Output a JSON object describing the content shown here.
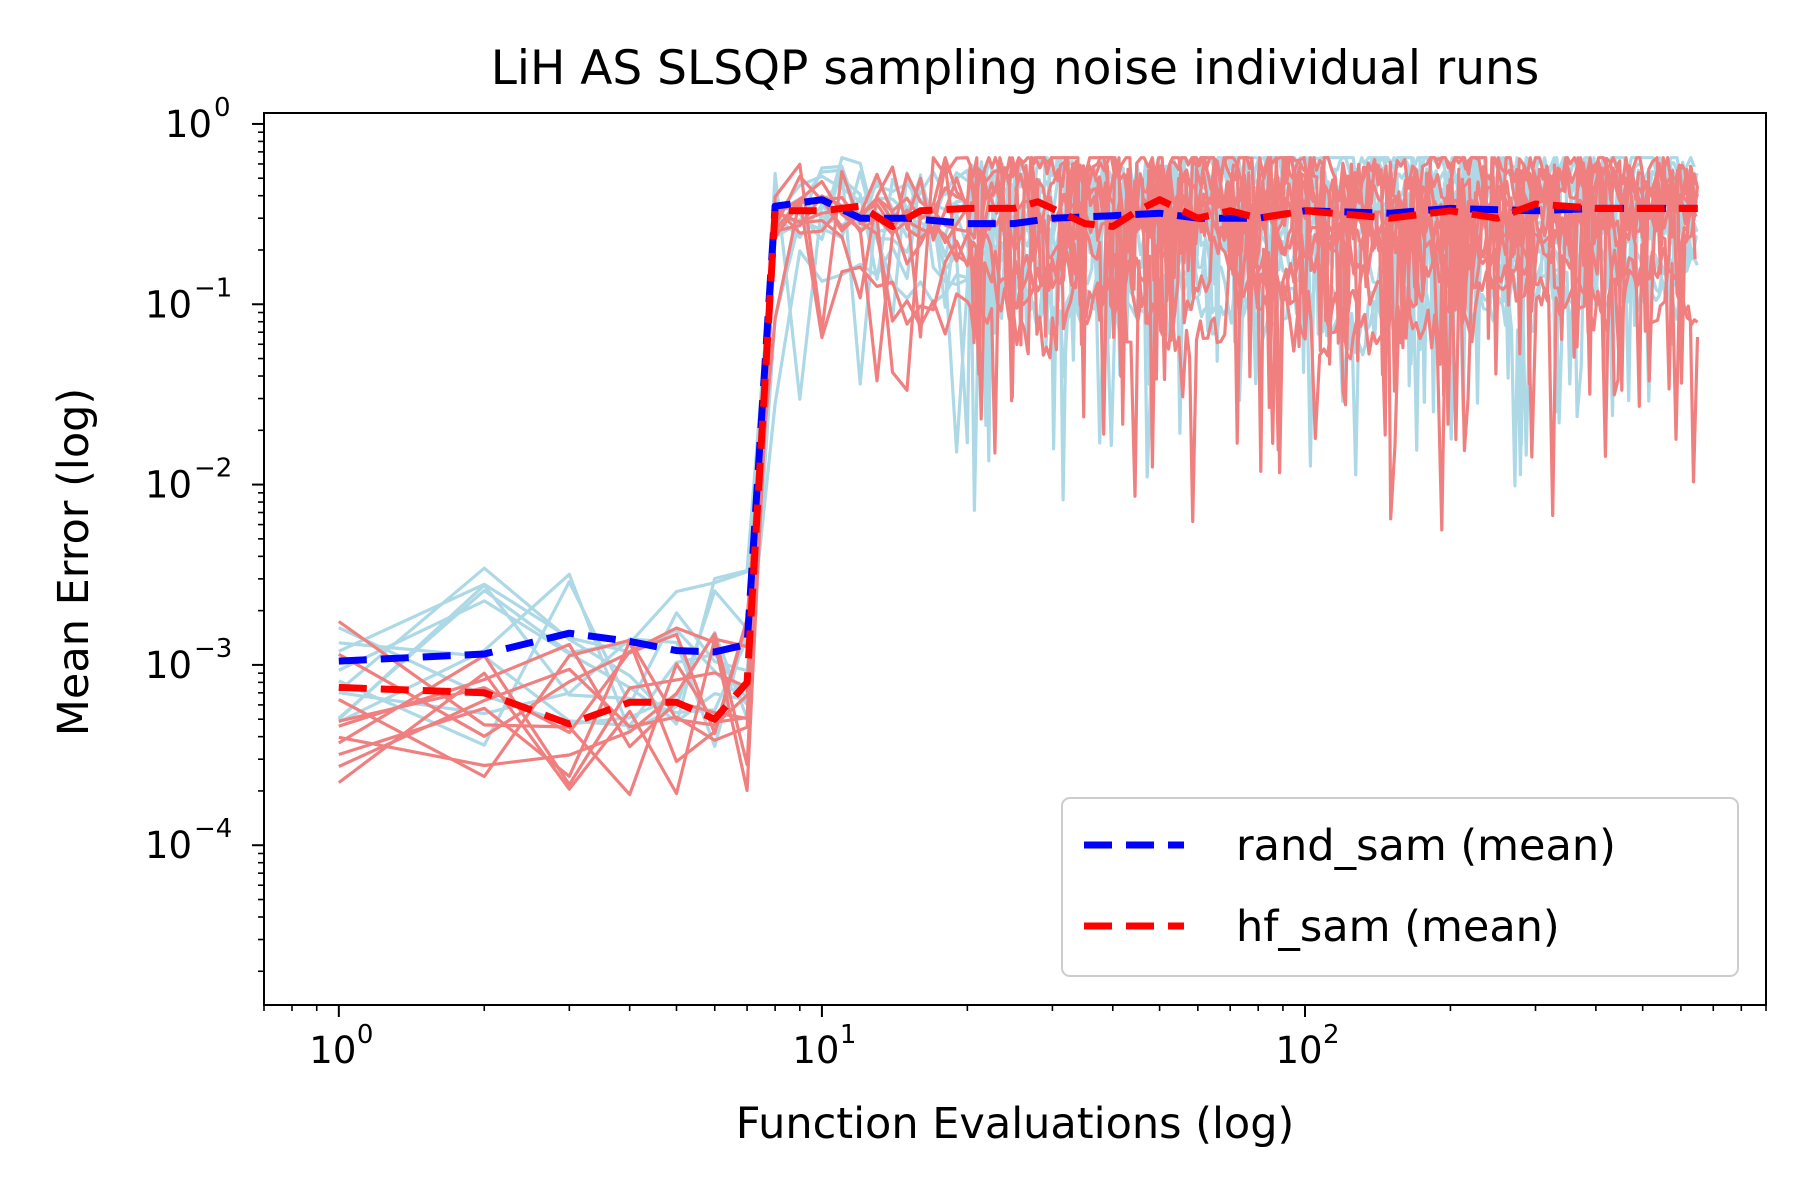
{
  "chart_data": {
    "type": "line",
    "title": "LiH AS SLSQP sampling noise individual runs",
    "xlabel": "Function Evaluations (log)",
    "ylabel": "Mean Error (log)",
    "xscale": "log",
    "yscale": "log",
    "xlim": [
      0.7,
      900
    ],
    "ylim": [
      1.3e-05,
      1.15
    ],
    "grid": false,
    "legend_placement": "lower-right",
    "x_ticks": [
      {
        "base": "10",
        "exp": "0",
        "value": 1
      },
      {
        "base": "10",
        "exp": "1",
        "value": 10
      },
      {
        "base": "10",
        "exp": "2",
        "value": 100
      }
    ],
    "y_ticks": [
      {
        "base": "10",
        "exp": "0",
        "value": 1
      },
      {
        "base": "10",
        "exp": "−1",
        "value": 0.1
      },
      {
        "base": "10",
        "exp": "−2",
        "value": 0.01
      },
      {
        "base": "10",
        "exp": "−3",
        "value": 0.001
      },
      {
        "base": "10",
        "exp": "−4",
        "value": 0.0001
      }
    ],
    "colors": {
      "rand_runs": "#add8e6",
      "hf_runs": "#f08080",
      "rand_mean": "#0000ff",
      "hf_mean": "#ff0000"
    },
    "series": [
      {
        "name": "rand_sam (mean)",
        "style": "dashed",
        "color": "#0000ff",
        "x": [
          1,
          2,
          3,
          4,
          5,
          6,
          7,
          8,
          10,
          12,
          15,
          20,
          25,
          30,
          40,
          50,
          60,
          80,
          100,
          150,
          200,
          300,
          400,
          650
        ],
        "y": [
          0.00105,
          0.00115,
          0.0015,
          0.00135,
          0.0012,
          0.00118,
          0.0013,
          0.35,
          0.38,
          0.3,
          0.3,
          0.28,
          0.28,
          0.3,
          0.31,
          0.32,
          0.3,
          0.3,
          0.33,
          0.32,
          0.34,
          0.33,
          0.34,
          0.34
        ]
      },
      {
        "name": "hf_sam (mean)",
        "style": "dashed",
        "color": "#ff0000",
        "x": [
          1,
          2,
          3,
          4,
          5,
          6,
          7,
          8,
          10,
          12,
          14,
          16,
          20,
          25,
          28,
          35,
          40,
          45,
          50,
          60,
          70,
          80,
          100,
          150,
          200,
          250,
          300,
          400,
          650
        ],
        "y": [
          0.00075,
          0.0007,
          0.00047,
          0.00062,
          0.00062,
          0.0005,
          0.0008,
          0.33,
          0.33,
          0.35,
          0.27,
          0.33,
          0.34,
          0.34,
          0.37,
          0.28,
          0.27,
          0.33,
          0.38,
          0.3,
          0.33,
          0.3,
          0.33,
          0.3,
          0.33,
          0.3,
          0.36,
          0.34,
          0.34
        ]
      }
    ]
  }
}
